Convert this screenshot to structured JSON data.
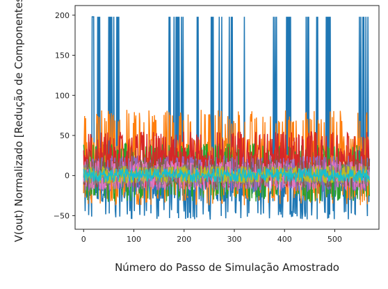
{
  "chart_data": {
    "type": "line",
    "xlabel": "Número do Passo de Simulação Amostrado",
    "ylabel": "V(out) Normalizado [Redução de Componentes]",
    "xlim": [
      -17,
      588
    ],
    "ylim": [
      -67,
      212
    ],
    "xticks": [
      0,
      100,
      200,
      300,
      400,
      500
    ],
    "yticks": [
      -50,
      0,
      50,
      100,
      150,
      200
    ],
    "grid": false,
    "legend": "none",
    "num_steps": 570,
    "series_description": "many overlapping normalized voltage traces",
    "series": [
      {
        "color": "#1f77b4",
        "baseline_range": [
          -55,
          25
        ],
        "spike_value": 198,
        "spike_steps": [
          17,
          18,
          19,
          20,
          28,
          30,
          32,
          50,
          52,
          54,
          56,
          60,
          66,
          68,
          70,
          170,
          172,
          180,
          184,
          186,
          188,
          190,
          195,
          198,
          226,
          228,
          254,
          256,
          258,
          270,
          275,
          290,
          294,
          296,
          320,
          378,
          381,
          384,
          404,
          406,
          408,
          410,
          412,
          443,
          446,
          448,
          464,
          466,
          483,
          485,
          487,
          489,
          491,
          549,
          552,
          556,
          558,
          562,
          566
        ]
      },
      {
        "color": "#ff7f0e",
        "baseline_range": [
          -37,
          82
        ]
      },
      {
        "color": "#2ca02c",
        "baseline_range": [
          -33,
          40
        ]
      },
      {
        "color": "#d62728",
        "baseline_range": [
          -15,
          55
        ]
      },
      {
        "color": "#9467bd",
        "baseline_range": [
          -20,
          25
        ]
      },
      {
        "color": "#8c564b",
        "baseline_range": [
          -15,
          20
        ]
      },
      {
        "color": "#e377c2",
        "baseline_range": [
          -18,
          18
        ]
      },
      {
        "color": "#7f7f7f",
        "baseline_range": [
          -12,
          14
        ]
      },
      {
        "color": "#bcbd22",
        "baseline_range": [
          -10,
          12
        ]
      },
      {
        "color": "#17becf",
        "baseline_range": [
          -8,
          9
        ]
      }
    ]
  }
}
